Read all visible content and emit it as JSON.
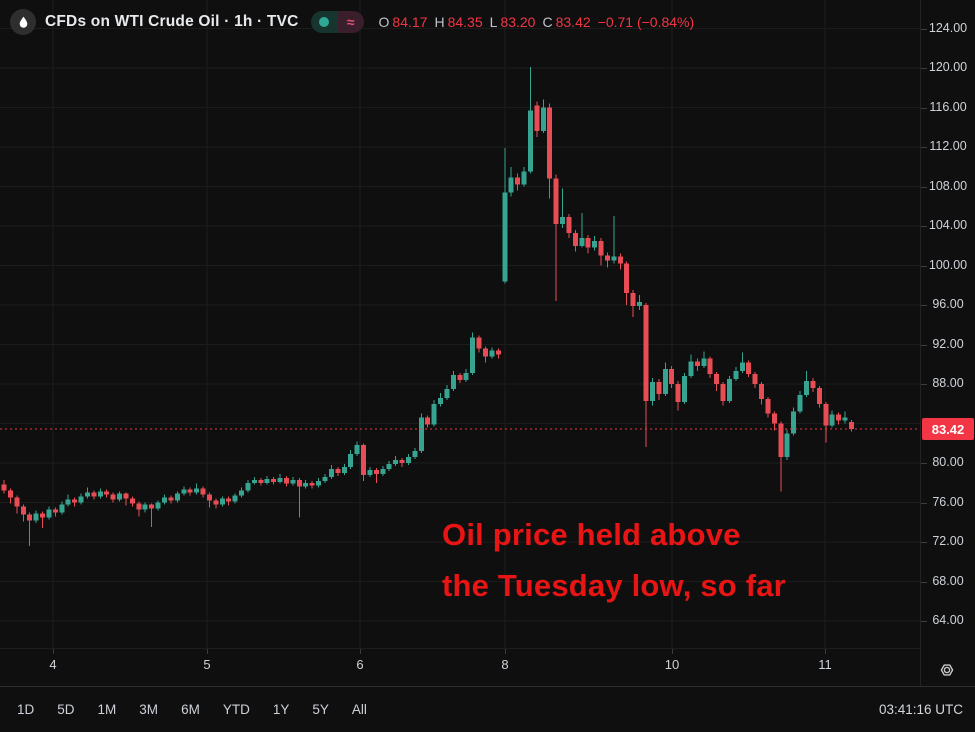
{
  "header": {
    "title": "CFDs on WTI Crude Oil · 1h · TVC",
    "ohlc": {
      "o_label": "O",
      "o": "84.17",
      "h_label": "H",
      "h": "84.35",
      "l_label": "L",
      "l": "83.20",
      "c_label": "C",
      "c": "83.42",
      "change": "−0.71 (−0.84%)"
    },
    "status_icons": [
      "market-status-dot",
      "delayed-data-approx"
    ]
  },
  "annotation": {
    "line1": "Oil price held above",
    "line2": "the Tuesday low, so far",
    "color": "#e91414"
  },
  "price_axis": {
    "tick_labels": [
      "124.00",
      "120.00",
      "116.00",
      "112.00",
      "108.00",
      "104.00",
      "100.00",
      "96.00",
      "92.00",
      "88.00",
      "80.00",
      "76.00",
      "72.00",
      "68.00",
      "64.00"
    ],
    "current_price_label": "83.42",
    "badge_color": "#f23645"
  },
  "time_axis": {
    "ticks": [
      {
        "label": "4",
        "x": 53
      },
      {
        "label": "5",
        "x": 207
      },
      {
        "label": "6",
        "x": 360
      },
      {
        "label": "8",
        "x": 505
      },
      {
        "label": "10",
        "x": 672
      },
      {
        "label": "11",
        "x": 825
      }
    ],
    "clock": "03:41:16 UTC"
  },
  "toolbar": {
    "ranges": [
      "1D",
      "5D",
      "1M",
      "3M",
      "6M",
      "YTD",
      "1Y",
      "5Y",
      "All"
    ]
  },
  "chart_data": {
    "type": "candlestick",
    "title": "CFDs on WTI Crude Oil · 1h · TVC",
    "interval": "1h",
    "exchange": "TVC",
    "ylim": [
      62,
      126
    ],
    "grid_levels": [
      64,
      68,
      72,
      76,
      80,
      84,
      88,
      92,
      96,
      100,
      104,
      108,
      112,
      116,
      120,
      124
    ],
    "last_price": 83.42,
    "up_color": "#37a492",
    "down_color": "#e84c54",
    "grid_color": "#1c1c1c",
    "candles_format": [
      "open",
      "high",
      "low",
      "close"
    ],
    "candles": [
      [
        77.8,
        78.3,
        76.9,
        77.2
      ],
      [
        77.2,
        77.4,
        75.9,
        76.5
      ],
      [
        76.5,
        76.7,
        74.9,
        75.6
      ],
      [
        75.6,
        75.8,
        74.1,
        74.8
      ],
      [
        74.8,
        75.0,
        71.6,
        74.2
      ],
      [
        74.2,
        75.2,
        73.9,
        74.9
      ],
      [
        74.9,
        75.1,
        73.4,
        74.5
      ],
      [
        74.5,
        75.6,
        74.3,
        75.3
      ],
      [
        75.3,
        75.5,
        74.6,
        75.0
      ],
      [
        75.0,
        76.1,
        74.8,
        75.8
      ],
      [
        75.8,
        76.8,
        75.6,
        76.3
      ],
      [
        76.3,
        76.5,
        75.6,
        76.0
      ],
      [
        76.0,
        76.9,
        75.8,
        76.6
      ],
      [
        76.6,
        77.5,
        76.4,
        77.0
      ],
      [
        77.0,
        77.2,
        76.3,
        76.6
      ],
      [
        76.6,
        77.4,
        76.4,
        77.1
      ],
      [
        77.1,
        77.3,
        76.5,
        76.8
      ],
      [
        76.8,
        77.0,
        76.0,
        76.3
      ],
      [
        76.3,
        77.1,
        76.1,
        76.9
      ],
      [
        76.9,
        77.0,
        75.7,
        76.4
      ],
      [
        76.4,
        76.6,
        75.6,
        75.9
      ],
      [
        75.9,
        76.1,
        74.6,
        75.3
      ],
      [
        75.3,
        76.0,
        75.0,
        75.8
      ],
      [
        75.8,
        75.9,
        73.5,
        75.4
      ],
      [
        75.4,
        76.2,
        75.2,
        76.0
      ],
      [
        76.0,
        76.8,
        75.8,
        76.5
      ],
      [
        76.5,
        76.7,
        75.9,
        76.2
      ],
      [
        76.2,
        77.1,
        76.0,
        76.9
      ],
      [
        76.9,
        77.6,
        76.7,
        77.3
      ],
      [
        77.3,
        77.5,
        76.7,
        77.0
      ],
      [
        77.0,
        77.9,
        76.8,
        77.4
      ],
      [
        77.4,
        77.6,
        76.5,
        76.8
      ],
      [
        76.8,
        77.0,
        75.5,
        76.2
      ],
      [
        76.2,
        76.4,
        75.4,
        75.8
      ],
      [
        75.8,
        76.6,
        75.6,
        76.4
      ],
      [
        76.4,
        76.6,
        75.7,
        76.1
      ],
      [
        76.1,
        76.9,
        75.9,
        76.7
      ],
      [
        76.7,
        77.5,
        76.5,
        77.2
      ],
      [
        77.2,
        78.3,
        77.0,
        78.0
      ],
      [
        78.0,
        78.6,
        77.8,
        78.3
      ],
      [
        78.3,
        78.5,
        77.7,
        78.0
      ],
      [
        78.0,
        78.7,
        77.8,
        78.4
      ],
      [
        78.4,
        78.6,
        77.8,
        78.1
      ],
      [
        78.1,
        78.9,
        77.9,
        78.5
      ],
      [
        78.5,
        78.7,
        77.6,
        77.9
      ],
      [
        77.9,
        78.6,
        77.7,
        78.3
      ],
      [
        78.3,
        78.5,
        74.5,
        77.6
      ],
      [
        77.6,
        78.3,
        77.4,
        78.0
      ],
      [
        78.0,
        78.2,
        77.4,
        77.7
      ],
      [
        77.7,
        78.5,
        77.5,
        78.2
      ],
      [
        78.2,
        78.9,
        78.0,
        78.6
      ],
      [
        78.6,
        79.8,
        78.4,
        79.4
      ],
      [
        79.4,
        79.6,
        78.7,
        79.0
      ],
      [
        79.0,
        79.9,
        78.8,
        79.6
      ],
      [
        79.6,
        81.3,
        79.4,
        80.9
      ],
      [
        80.9,
        82.2,
        80.7,
        81.8
      ],
      [
        81.8,
        82.0,
        78.2,
        78.8
      ],
      [
        78.8,
        79.6,
        78.6,
        79.3
      ],
      [
        79.3,
        79.5,
        78.0,
        78.9
      ],
      [
        78.9,
        79.7,
        78.7,
        79.4
      ],
      [
        79.4,
        80.2,
        79.2,
        79.9
      ],
      [
        79.9,
        80.7,
        79.7,
        80.3
      ],
      [
        80.3,
        80.5,
        79.6,
        80.0
      ],
      [
        80.0,
        80.9,
        79.8,
        80.6
      ],
      [
        80.6,
        81.5,
        80.4,
        81.2
      ],
      [
        81.2,
        85.0,
        81.0,
        84.6
      ],
      [
        84.6,
        84.8,
        83.6,
        83.9
      ],
      [
        83.9,
        86.4,
        83.7,
        86.0
      ],
      [
        86.0,
        87.1,
        85.7,
        86.6
      ],
      [
        86.6,
        87.9,
        86.4,
        87.5
      ],
      [
        87.5,
        89.3,
        87.3,
        88.9
      ],
      [
        88.9,
        89.1,
        88.1,
        88.4
      ],
      [
        88.4,
        89.5,
        88.2,
        89.1
      ],
      [
        89.1,
        93.2,
        88.9,
        92.7
      ],
      [
        92.7,
        92.9,
        91.2,
        91.6
      ],
      [
        91.6,
        91.8,
        90.2,
        90.8
      ],
      [
        90.8,
        91.7,
        90.6,
        91.4
      ],
      [
        91.4,
        91.6,
        90.6,
        91.0
      ],
      [
        98.4,
        111.9,
        98.2,
        107.4
      ],
      [
        107.4,
        110.0,
        107.0,
        108.9
      ],
      [
        108.9,
        109.3,
        107.6,
        108.2
      ],
      [
        108.2,
        110.0,
        108.0,
        109.5
      ],
      [
        109.5,
        120.1,
        109.3,
        115.7
      ],
      [
        116.2,
        116.6,
        113.0,
        113.6
      ],
      [
        113.6,
        116.8,
        113.4,
        116.0
      ],
      [
        116.0,
        116.4,
        106.8,
        108.8
      ],
      [
        108.8,
        109.2,
        96.4,
        104.2
      ],
      [
        104.2,
        107.8,
        103.8,
        104.9
      ],
      [
        104.9,
        105.2,
        102.8,
        103.3
      ],
      [
        103.3,
        103.6,
        101.4,
        102.0
      ],
      [
        102.0,
        105.3,
        101.8,
        102.8
      ],
      [
        102.8,
        103.1,
        101.2,
        101.8
      ],
      [
        101.8,
        103.0,
        101.5,
        102.5
      ],
      [
        102.5,
        102.8,
        100.0,
        101.0
      ],
      [
        101.0,
        101.3,
        99.8,
        100.5
      ],
      [
        100.5,
        105.0,
        100.2,
        100.9
      ],
      [
        100.9,
        101.2,
        99.6,
        100.2
      ],
      [
        100.2,
        100.4,
        96.0,
        97.2
      ],
      [
        97.2,
        97.5,
        94.8,
        95.9
      ],
      [
        95.9,
        97.0,
        95.5,
        96.3
      ],
      [
        96.0,
        96.2,
        81.6,
        86.3
      ],
      [
        86.3,
        88.6,
        85.8,
        88.2
      ],
      [
        88.2,
        88.5,
        86.4,
        87.0
      ],
      [
        87.0,
        90.2,
        86.8,
        89.5
      ],
      [
        89.5,
        89.8,
        87.6,
        88.0
      ],
      [
        88.0,
        88.3,
        85.3,
        86.2
      ],
      [
        86.2,
        89.1,
        86.0,
        88.8
      ],
      [
        88.8,
        91.0,
        88.6,
        90.3
      ],
      [
        90.3,
        90.6,
        89.3,
        89.8
      ],
      [
        89.8,
        91.3,
        89.6,
        90.6
      ],
      [
        90.6,
        90.8,
        88.6,
        89.0
      ],
      [
        89.0,
        89.2,
        87.3,
        88.0
      ],
      [
        88.0,
        88.2,
        85.8,
        86.3
      ],
      [
        86.3,
        88.8,
        86.1,
        88.5
      ],
      [
        88.5,
        89.7,
        88.3,
        89.3
      ],
      [
        89.3,
        91.2,
        89.1,
        90.2
      ],
      [
        90.2,
        90.4,
        88.7,
        89.0
      ],
      [
        89.0,
        89.2,
        87.6,
        88.0
      ],
      [
        88.0,
        88.2,
        85.9,
        86.5
      ],
      [
        86.5,
        86.7,
        84.6,
        85.0
      ],
      [
        85.0,
        85.2,
        83.3,
        84.0
      ],
      [
        84.0,
        84.2,
        77.1,
        80.6
      ],
      [
        80.6,
        83.4,
        80.3,
        83.0
      ],
      [
        83.0,
        85.6,
        82.8,
        85.2
      ],
      [
        85.2,
        87.3,
        85.0,
        86.9
      ],
      [
        86.9,
        89.3,
        86.7,
        88.3
      ],
      [
        88.3,
        88.6,
        87.2,
        87.6
      ],
      [
        87.6,
        87.8,
        85.6,
        86.0
      ],
      [
        86.0,
        86.2,
        82.1,
        83.8
      ],
      [
        83.8,
        85.3,
        83.6,
        84.9
      ],
      [
        84.9,
        85.1,
        83.9,
        84.3
      ],
      [
        84.3,
        85.2,
        84.0,
        84.6
      ],
      [
        84.17,
        84.35,
        83.2,
        83.42
      ]
    ]
  }
}
